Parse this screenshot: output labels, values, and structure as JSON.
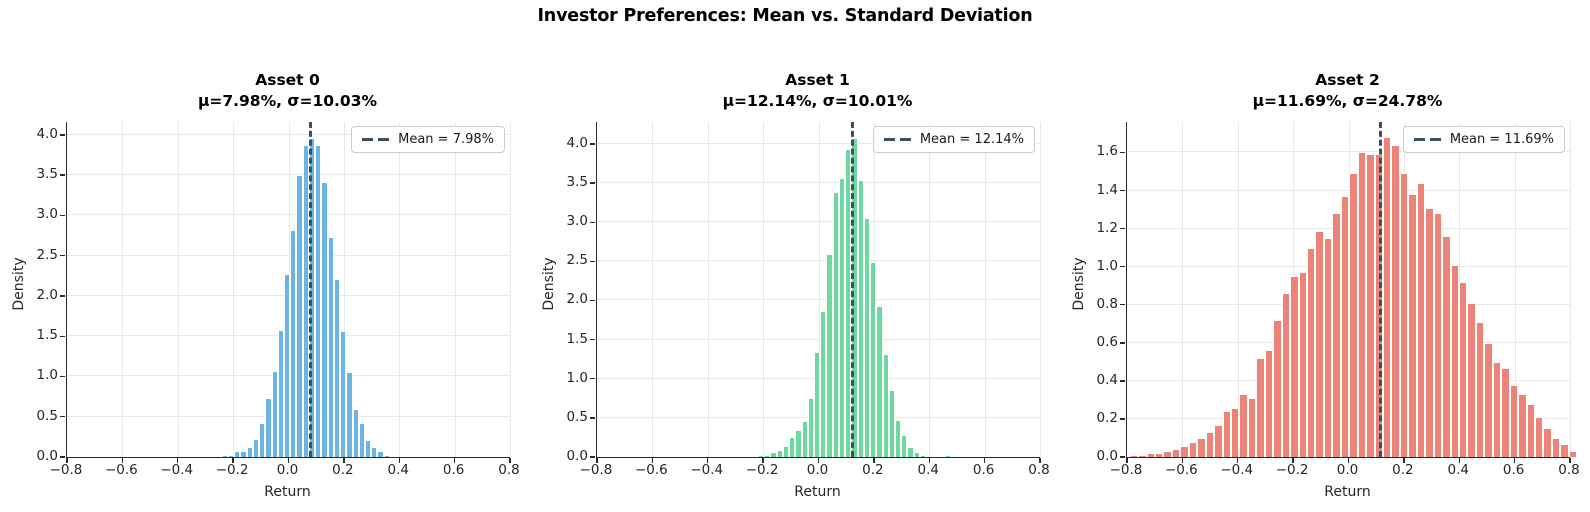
{
  "figure_title": "Investor Preferences: Mean vs. Standard Deviation",
  "colors": {
    "asset0_bar": "#6CB4E4",
    "asset1_bar": "#6ED99E",
    "asset2_bar": "#EC8379",
    "mean_line": "#3d5060",
    "grid": "#e8e8e8",
    "spine": "#2b2b2b"
  },
  "chart_data": [
    {
      "type": "bar",
      "subtype": "histogram",
      "title": "Asset 0",
      "subtitle": "μ=7.98%, σ=10.03%",
      "xlabel": "Return",
      "ylabel": "Density",
      "legend_label": "Mean = 7.98%",
      "legend_position": "upper right",
      "mean": 0.0798,
      "sigma": 0.1003,
      "xlim": [
        -0.8,
        0.8
      ],
      "ylim": [
        0,
        4.16
      ],
      "xticks": [
        -0.8,
        -0.6,
        -0.4,
        -0.2,
        0.0,
        0.2,
        0.4,
        0.6,
        0.8
      ],
      "yticks": [
        0.0,
        0.5,
        1.0,
        1.5,
        2.0,
        2.5,
        3.0,
        3.5,
        4.0
      ],
      "grid": true,
      "bar_color": "#6CB4E4",
      "bin_start": -0.2975,
      "bin_width": 0.0225,
      "heights": [
        0.01,
        0.01,
        0.01,
        0.02,
        0.03,
        0.07,
        0.08,
        0.13,
        0.22,
        0.42,
        0.73,
        1.07,
        1.58,
        2.27,
        2.82,
        3.5,
        3.87,
        3.96,
        3.88,
        3.41,
        2.73,
        2.21,
        1.56,
        1.06,
        0.6,
        0.42,
        0.21,
        0.13,
        0.07,
        0.03,
        0.01
      ]
    },
    {
      "type": "bar",
      "subtype": "histogram",
      "title": "Asset 1",
      "subtitle": "μ=12.14%, σ=10.01%",
      "xlabel": "Return",
      "ylabel": "Density",
      "legend_label": "Mean = 12.14%",
      "legend_position": "upper right",
      "mean": 0.1214,
      "sigma": 0.1001,
      "xlim": [
        -0.8,
        0.8
      ],
      "ylim": [
        0,
        4.28
      ],
      "xticks": [
        -0.8,
        -0.6,
        -0.4,
        -0.2,
        0.0,
        0.2,
        0.4,
        0.6,
        0.8
      ],
      "yticks": [
        0.0,
        0.5,
        1.0,
        1.5,
        2.0,
        2.5,
        3.0,
        3.5,
        4.0
      ],
      "grid": true,
      "bar_color": "#6ED99E",
      "bin_start": -0.23,
      "bin_width": 0.0225,
      "heights": [
        0.01,
        0.02,
        0.03,
        0.06,
        0.09,
        0.14,
        0.25,
        0.35,
        0.46,
        0.75,
        1.34,
        1.86,
        2.6,
        3.39,
        3.56,
        3.94,
        4.08,
        3.54,
        3.06,
        2.49,
        1.93,
        1.31,
        0.86,
        0.47,
        0.28,
        0.13,
        0.06,
        0.02,
        0.01,
        0,
        0,
        0.02
      ]
    },
    {
      "type": "bar",
      "subtype": "histogram",
      "title": "Asset 2",
      "subtitle": "μ=11.69%, σ=24.78%",
      "xlabel": "Return",
      "ylabel": "Density",
      "legend_label": "Mean = 11.69%",
      "legend_position": "upper right",
      "mean": 0.1169,
      "sigma": 0.2478,
      "xlim": [
        -0.8,
        0.8
      ],
      "ylim": [
        0,
        1.76
      ],
      "xticks": [
        -0.8,
        -0.6,
        -0.4,
        -0.2,
        0.0,
        0.2,
        0.4,
        0.6,
        0.8
      ],
      "yticks": [
        0.0,
        0.2,
        0.4,
        0.6,
        0.8,
        1.0,
        1.2,
        1.4,
        1.6
      ],
      "grid": true,
      "bar_color": "#EC8379",
      "bin_start": -0.775,
      "bin_width": 0.0305,
      "heights": [
        0.01,
        0.01,
        0.02,
        0.02,
        0.03,
        0.04,
        0.06,
        0.08,
        0.1,
        0.13,
        0.17,
        0.24,
        0.26,
        0.33,
        0.31,
        0.52,
        0.56,
        0.72,
        0.86,
        0.95,
        0.97,
        1.1,
        1.19,
        1.15,
        1.28,
        1.37,
        1.49,
        1.6,
        1.59,
        1.59,
        1.68,
        1.64,
        1.49,
        1.38,
        1.44,
        1.31,
        1.28,
        1.16,
        1.01,
        0.92,
        0.81,
        0.71,
        0.6,
        0.5,
        0.47,
        0.38,
        0.33,
        0.28,
        0.21,
        0.15,
        0.1,
        0.07,
        0.03
      ]
    }
  ]
}
